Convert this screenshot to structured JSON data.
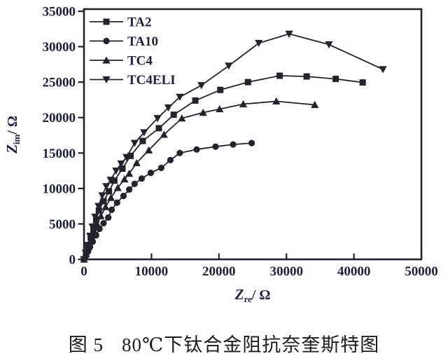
{
  "caption": {
    "label": "图 5",
    "text": "80℃下钛合金阻抗奈奎斯特图"
  },
  "colors": {
    "ink": "#26222c",
    "tick_text": "#1f2136",
    "caption_text": "#1c1c1c",
    "background": "#ffffff"
  },
  "chart_data": {
    "type": "scatter",
    "title": "",
    "xlabel": "Z_re / Ω",
    "ylabel": "Z_im / Ω",
    "xlabel_parts": {
      "sym": "Z",
      "sub": "re",
      "rest": "/ Ω"
    },
    "ylabel_parts": {
      "sym": "Z",
      "sub": "im",
      "rest": "/ Ω"
    },
    "xlim": [
      0,
      50000
    ],
    "ylim": [
      0,
      35000
    ],
    "x_ticks": [
      0,
      10000,
      20000,
      30000,
      40000,
      50000
    ],
    "y_ticks": [
      0,
      5000,
      10000,
      15000,
      20000,
      25000,
      30000,
      35000
    ],
    "x_tick_labels": [
      "0",
      "10000",
      "20000",
      "30000",
      "40000",
      "50000"
    ],
    "y_tick_labels": [
      "0",
      "5000",
      "10000",
      "15000",
      "20000",
      "25000",
      "30000",
      "35000"
    ],
    "grid": false,
    "legend_position": "upper-left-inside",
    "series": [
      {
        "name": "TA2",
        "marker": "square",
        "points": [
          [
            0,
            0
          ],
          [
            300,
            900
          ],
          [
            600,
            1900
          ],
          [
            1000,
            3100
          ],
          [
            1400,
            4300
          ],
          [
            1800,
            5600
          ],
          [
            2200,
            6900
          ],
          [
            2900,
            8200
          ],
          [
            3700,
            9600
          ],
          [
            4500,
            11100
          ],
          [
            5700,
            12800
          ],
          [
            6900,
            14600
          ],
          [
            8700,
            16700
          ],
          [
            11100,
            18500
          ],
          [
            13300,
            20400
          ],
          [
            16500,
            22400
          ],
          [
            20200,
            23900
          ],
          [
            24300,
            25000
          ],
          [
            29000,
            25900
          ],
          [
            33000,
            25800
          ],
          [
            37300,
            25450
          ],
          [
            41300,
            24950
          ]
        ]
      },
      {
        "name": "TA10",
        "marker": "circle",
        "points": [
          [
            0,
            0
          ],
          [
            300,
            500
          ],
          [
            600,
            1100
          ],
          [
            900,
            1750
          ],
          [
            1300,
            2500
          ],
          [
            1800,
            3400
          ],
          [
            2300,
            4300
          ],
          [
            2900,
            5100
          ],
          [
            3600,
            5900
          ],
          [
            4100,
            7000
          ],
          [
            4900,
            8000
          ],
          [
            5850,
            8950
          ],
          [
            6700,
            9850
          ],
          [
            7500,
            10650
          ],
          [
            8550,
            11400
          ],
          [
            9900,
            12200
          ],
          [
            11450,
            12900
          ],
          [
            12800,
            14000
          ],
          [
            14200,
            15000
          ],
          [
            16700,
            15500
          ],
          [
            19500,
            15900
          ],
          [
            22100,
            16200
          ],
          [
            24850,
            16400
          ]
        ]
      },
      {
        "name": "TC4",
        "marker": "triangle-up",
        "points": [
          [
            0,
            0
          ],
          [
            300,
            800
          ],
          [
            650,
            1700
          ],
          [
            1000,
            2700
          ],
          [
            1450,
            3800
          ],
          [
            1950,
            5000
          ],
          [
            2500,
            6100
          ],
          [
            3200,
            7400
          ],
          [
            4000,
            8700
          ],
          [
            5000,
            10100
          ],
          [
            6000,
            11300
          ],
          [
            6700,
            12100
          ],
          [
            7800,
            13600
          ],
          [
            9600,
            15400
          ],
          [
            11850,
            17600
          ],
          [
            14500,
            19900
          ],
          [
            17650,
            20700
          ],
          [
            20100,
            21200
          ],
          [
            23600,
            21900
          ],
          [
            28500,
            22300
          ],
          [
            34200,
            21800
          ]
        ]
      },
      {
        "name": "TC4ELI",
        "marker": "triangle-down",
        "points": [
          [
            0,
            0
          ],
          [
            250,
            900
          ],
          [
            550,
            2000
          ],
          [
            900,
            3300
          ],
          [
            1250,
            4600
          ],
          [
            1650,
            6000
          ],
          [
            2150,
            7500
          ],
          [
            2700,
            9000
          ],
          [
            3300,
            10300
          ],
          [
            3950,
            11200
          ],
          [
            4750,
            12500
          ],
          [
            5500,
            13500
          ],
          [
            6300,
            14400
          ],
          [
            7500,
            16400
          ],
          [
            8900,
            17900
          ],
          [
            10900,
            19900
          ],
          [
            12500,
            21400
          ],
          [
            14200,
            22900
          ],
          [
            17400,
            24550
          ],
          [
            21450,
            27300
          ],
          [
            25900,
            30500
          ],
          [
            30400,
            31800
          ],
          [
            36300,
            30300
          ],
          [
            44300,
            26800
          ]
        ]
      }
    ]
  }
}
